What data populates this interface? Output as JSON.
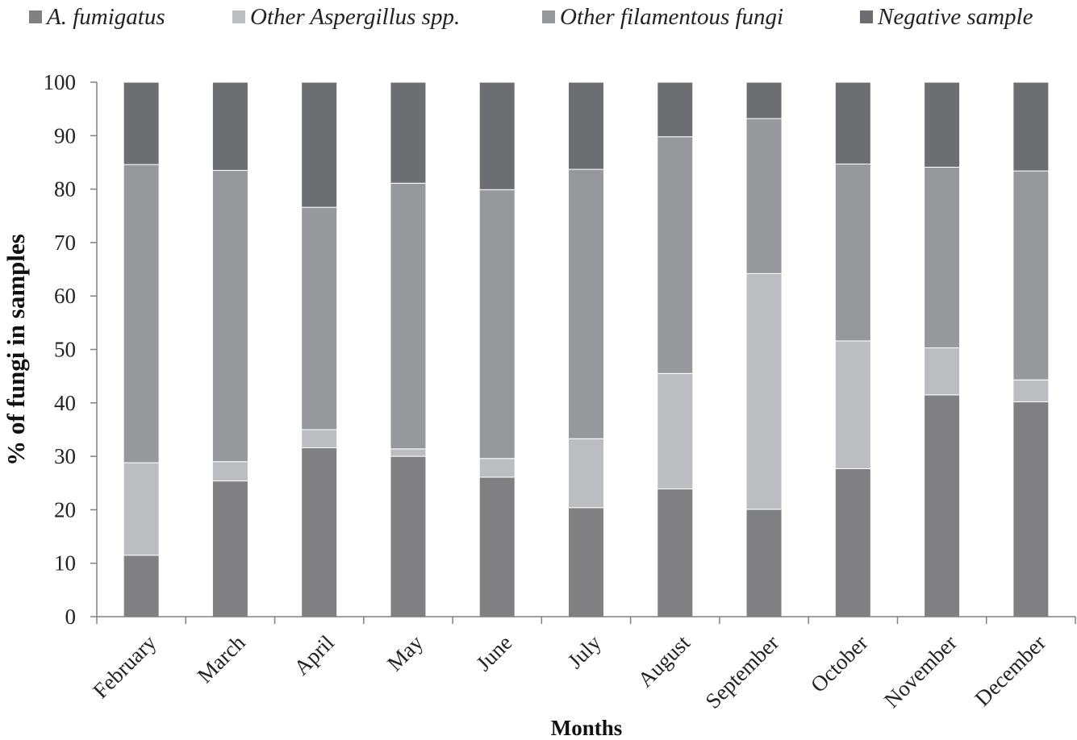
{
  "chart_data": {
    "type": "bar",
    "stacked": true,
    "title": "",
    "xlabel": "Months",
    "ylabel": "% of fungi in samples",
    "ylim": [
      0,
      100
    ],
    "yticks": [
      0,
      10,
      20,
      30,
      40,
      50,
      60,
      70,
      80,
      90,
      100
    ],
    "grid": false,
    "legend_position": "top",
    "categories": [
      "February",
      "March",
      "April",
      "May",
      "June",
      "July",
      "August",
      "September",
      "October",
      "November",
      "December"
    ],
    "series": [
      {
        "name": "A. fumigatus",
        "color": "#808083",
        "values": [
          11.5,
          25.4,
          31.6,
          30.0,
          26.1,
          20.4,
          23.9,
          20.1,
          27.7,
          41.5,
          40.2
        ]
      },
      {
        "name": "Other Aspergillus spp.",
        "color": "#bcbdc0",
        "values": [
          17.3,
          3.6,
          3.4,
          1.4,
          3.5,
          12.9,
          21.6,
          44.1,
          23.9,
          8.8,
          4.1
        ]
      },
      {
        "name": "Other filamentous fungi",
        "color": "#97989b",
        "values": [
          55.8,
          54.5,
          41.6,
          49.7,
          50.3,
          50.4,
          44.3,
          29.0,
          33.1,
          33.8,
          39.1
        ]
      },
      {
        "name": "Negative sample",
        "color": "#6d6e71",
        "values": [
          15.4,
          16.5,
          23.4,
          18.9,
          20.1,
          16.3,
          10.2,
          6.8,
          15.3,
          15.9,
          16.6
        ]
      }
    ]
  }
}
